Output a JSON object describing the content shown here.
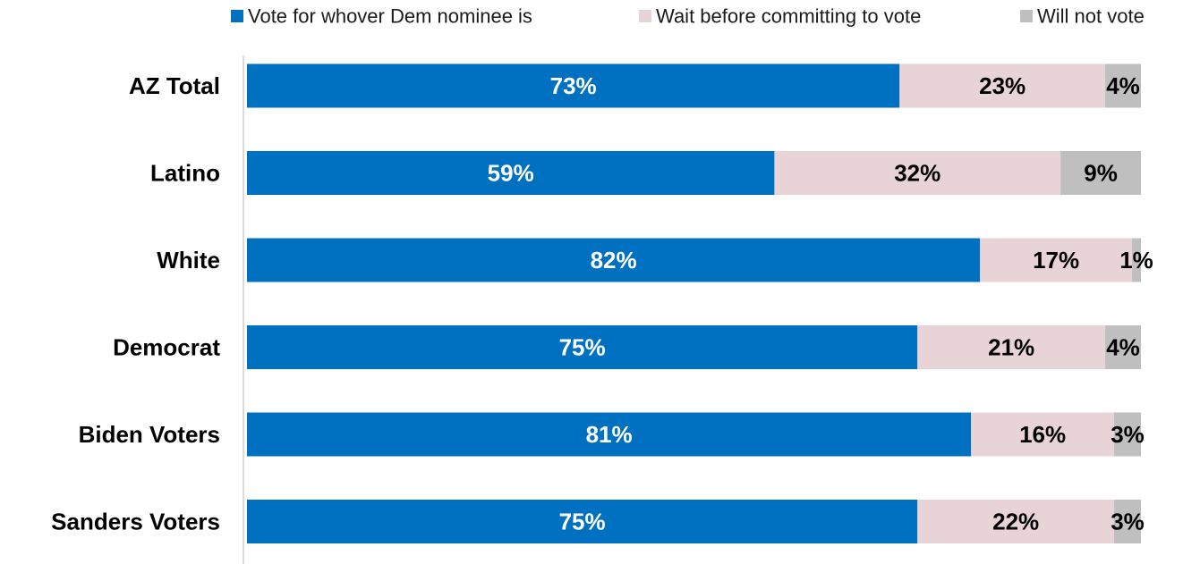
{
  "chart_data": {
    "type": "bar",
    "orientation": "horizontal",
    "stacked": true,
    "categories": [
      "AZ Total",
      "Latino",
      "White",
      "Democrat",
      "Biden Voters",
      "Sanders Voters"
    ],
    "series": [
      {
        "name": "Vote for whover Dem nominee is",
        "color": "#0070C0",
        "label_color": "#ffffff",
        "values": [
          73,
          59,
          82,
          75,
          81,
          75
        ],
        "labels": [
          "73%",
          "59%",
          "82%",
          "75%",
          "81%",
          "75%"
        ]
      },
      {
        "name": "Wait before committing to vote",
        "color": "#E8D3D7",
        "label_color": "#000000",
        "values": [
          23,
          32,
          17,
          21,
          16,
          22
        ],
        "labels": [
          "23%",
          "32%",
          "17%",
          "21%",
          "16%",
          "22%"
        ]
      },
      {
        "name": "Will not vote",
        "color": "#BFBFBF",
        "label_color": "#000000",
        "values": [
          4,
          9,
          1,
          4,
          3,
          3
        ],
        "labels": [
          "4%",
          "9%",
          "1%",
          "4%",
          "3%",
          "3%"
        ]
      }
    ],
    "xlim": [
      0,
      100
    ],
    "grid": false,
    "legend_position": "top-right"
  }
}
